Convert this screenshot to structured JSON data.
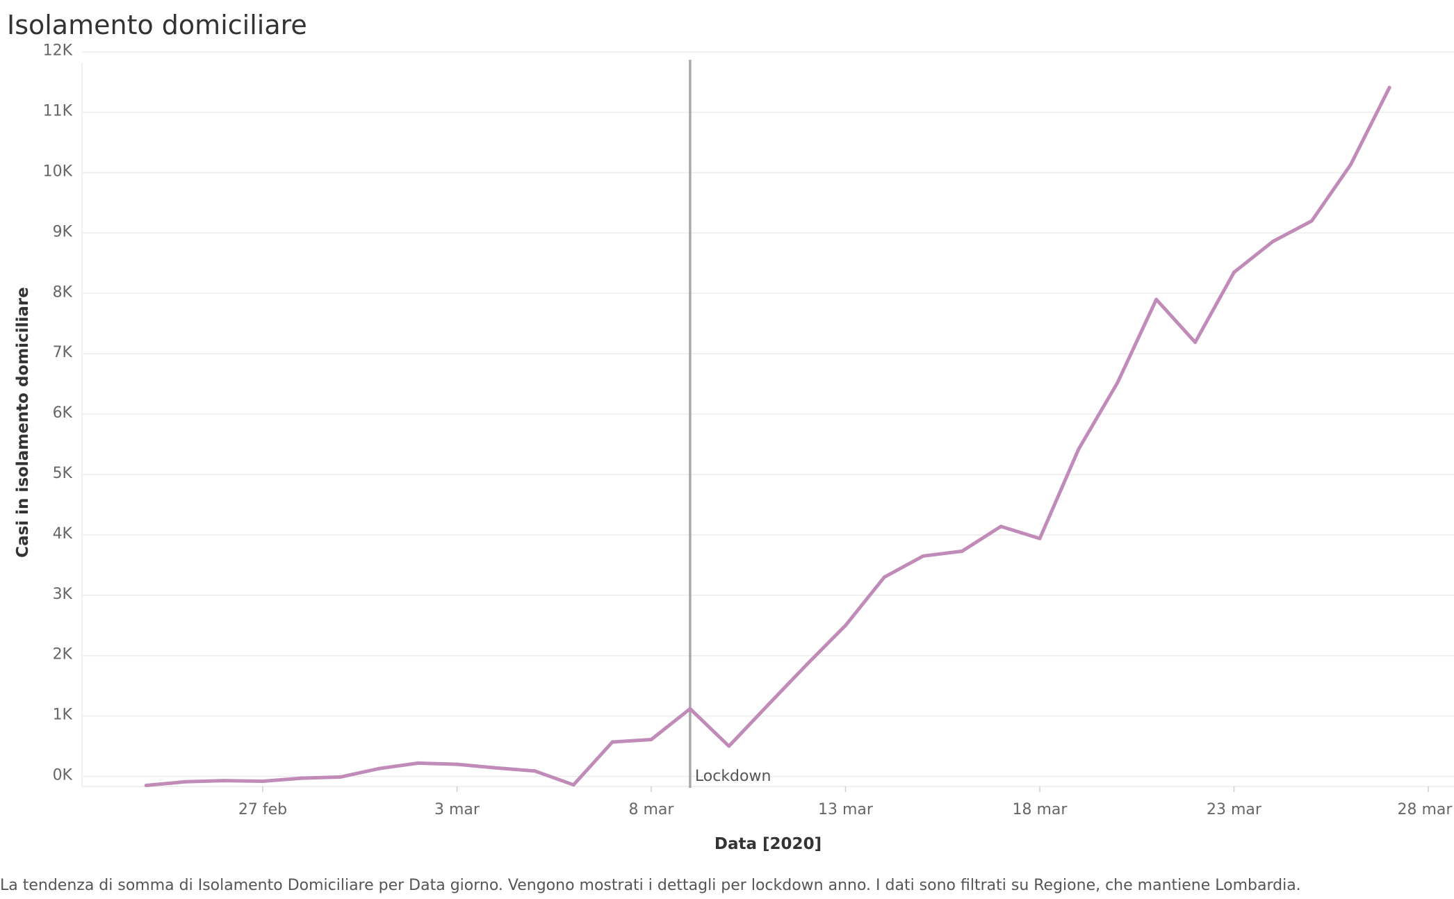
{
  "page": {
    "title": "Isolamento domiciliare",
    "caption": "La tendenza di somma di Isolamento Domiciliare per Data giorno.  Vengono mostrati i dettagli per lockdown anno. I dati sono filtrati su Regione, che mantiene Lombardia."
  },
  "chart_data": {
    "type": "line",
    "title": "Isolamento domiciliare",
    "xlabel": "Data [2020]",
    "ylabel": "Casi in isolamento domiciliare",
    "x_ticks": [
      "27 feb",
      "3 mar",
      "8 mar",
      "13 mar",
      "18 mar",
      "23 mar",
      "28 mar"
    ],
    "y_ticks": [
      "0K",
      "1K",
      "2K",
      "3K",
      "4K",
      "5K",
      "6K",
      "7K",
      "8K",
      "9K",
      "10K",
      "11K",
      "12K"
    ],
    "ylim": [
      0,
      12000
    ],
    "grid": true,
    "color": "#c08bb8",
    "series": [
      {
        "x": [
          "2020-02-24",
          "2020-02-25",
          "2020-02-26",
          "2020-02-27",
          "2020-02-28",
          "2020-02-29",
          "2020-03-01",
          "2020-03-02",
          "2020-03-03",
          "2020-03-04",
          "2020-03-05",
          "2020-03-06",
          "2020-03-07",
          "2020-03-08",
          "2020-03-09",
          "2020-03-10",
          "2020-03-11",
          "2020-03-12",
          "2020-03-13",
          "2020-03-14",
          "2020-03-15",
          "2020-03-16",
          "2020-03-17",
          "2020-03-18",
          "2020-03-19",
          "2020-03-20",
          "2020-03-21",
          "2020-03-22",
          "2020-03-23",
          "2020-03-24",
          "2020-03-25",
          "2020-03-26",
          "2020-03-27"
        ],
        "values": [
          -150,
          -90,
          -70,
          -80,
          -30,
          -10,
          130,
          220,
          200,
          140,
          90,
          -140,
          570,
          610,
          1120,
          500,
          1180,
          1850,
          2500,
          3300,
          3650,
          3730,
          4140,
          3940,
          5420,
          6520,
          7900,
          7190,
          8350,
          8860,
          9200,
          10130,
          11410
        ]
      }
    ],
    "annotations": [
      {
        "x": "2020-03-09",
        "label": "Lockdown"
      }
    ]
  }
}
